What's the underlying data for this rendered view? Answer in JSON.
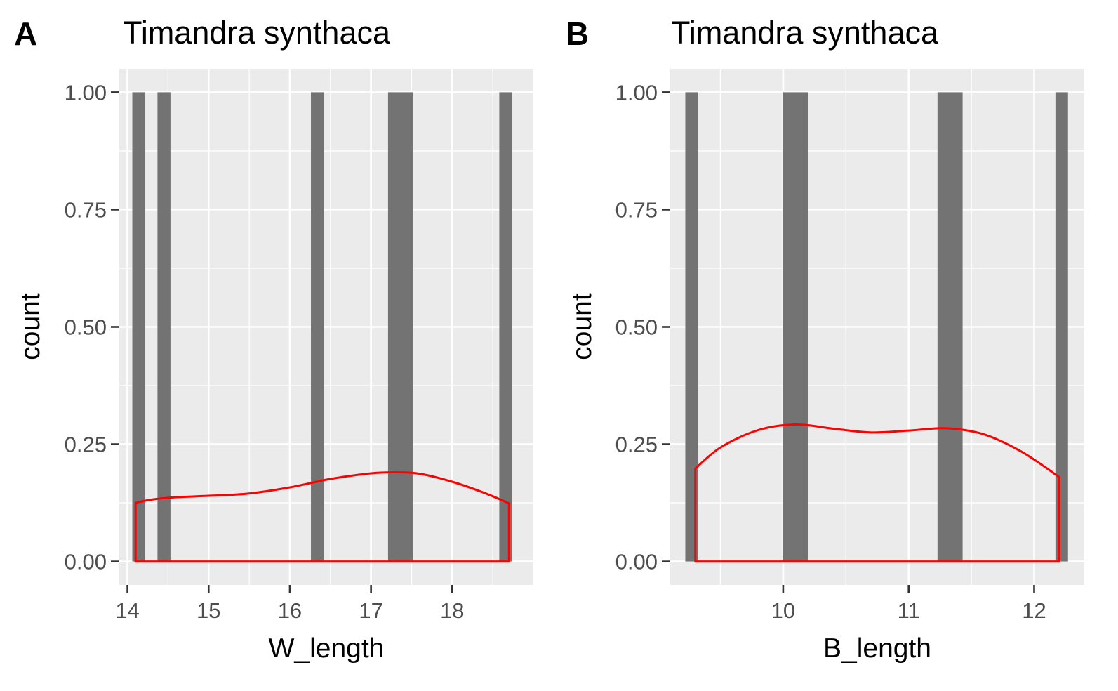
{
  "colors": {
    "panel_bg": "#ebebeb",
    "grid": "#ffffff",
    "bar_fill": "#737373",
    "density_line": "#ff0000",
    "tick_text": "#4d4d4d",
    "text": "#000000"
  },
  "chart_data": [
    {
      "type": "bar",
      "panel_label": "A",
      "title": "Timandra synthaca",
      "xlabel": "W_length",
      "ylabel": "count",
      "xlim": [
        13.9,
        19.0
      ],
      "ylim": [
        -0.05,
        1.05
      ],
      "x_ticks": [
        14,
        15,
        16,
        17,
        18
      ],
      "x_minor_ticks": [
        14.5,
        15.5,
        16.5,
        17.5,
        18.5
      ],
      "y_ticks": [
        0,
        0.25,
        0.5,
        0.75,
        1.0
      ],
      "y_tick_labels": [
        "0.00",
        "0.25",
        "0.50",
        "0.75",
        "1.00"
      ],
      "grid": true,
      "bars": [
        {
          "x_start": 14.06,
          "x_end": 14.22,
          "count": 1
        },
        {
          "x_start": 14.37,
          "x_end": 14.53,
          "count": 1
        },
        {
          "x_start": 16.26,
          "x_end": 16.42,
          "count": 1
        },
        {
          "x_start": 17.21,
          "x_end": 17.52,
          "count": 1
        },
        {
          "x_start": 18.58,
          "x_end": 18.74,
          "count": 1
        }
      ],
      "density": {
        "x": [
          14.1,
          14.3,
          14.6,
          15.0,
          15.5,
          16.0,
          16.5,
          17.0,
          17.3,
          17.6,
          18.0,
          18.4,
          18.7
        ],
        "y": [
          0.125,
          0.132,
          0.137,
          0.14,
          0.145,
          0.158,
          0.176,
          0.188,
          0.19,
          0.187,
          0.17,
          0.146,
          0.124
        ]
      }
    },
    {
      "type": "bar",
      "panel_label": "B",
      "title": "Timandra synthaca",
      "xlabel": "B_length",
      "ylabel": "count",
      "xlim": [
        9.1,
        12.4
      ],
      "ylim": [
        -0.05,
        1.05
      ],
      "x_ticks": [
        10,
        11,
        12
      ],
      "x_minor_ticks": [
        9.5,
        10.5,
        11.5
      ],
      "y_ticks": [
        0,
        0.25,
        0.5,
        0.75,
        1.0
      ],
      "y_tick_labels": [
        "0.00",
        "0.25",
        "0.50",
        "0.75",
        "1.00"
      ],
      "grid": true,
      "bars": [
        {
          "x_start": 9.22,
          "x_end": 9.32,
          "count": 1
        },
        {
          "x_start": 10.0,
          "x_end": 10.2,
          "count": 1
        },
        {
          "x_start": 11.23,
          "x_end": 11.43,
          "count": 1
        },
        {
          "x_start": 12.17,
          "x_end": 12.27,
          "count": 1
        }
      ],
      "density": {
        "x": [
          9.3,
          9.5,
          9.8,
          10.1,
          10.4,
          10.7,
          11.0,
          11.3,
          11.6,
          11.9,
          12.2
        ],
        "y": [
          0.198,
          0.243,
          0.28,
          0.292,
          0.283,
          0.275,
          0.279,
          0.284,
          0.271,
          0.234,
          0.18
        ]
      }
    }
  ]
}
